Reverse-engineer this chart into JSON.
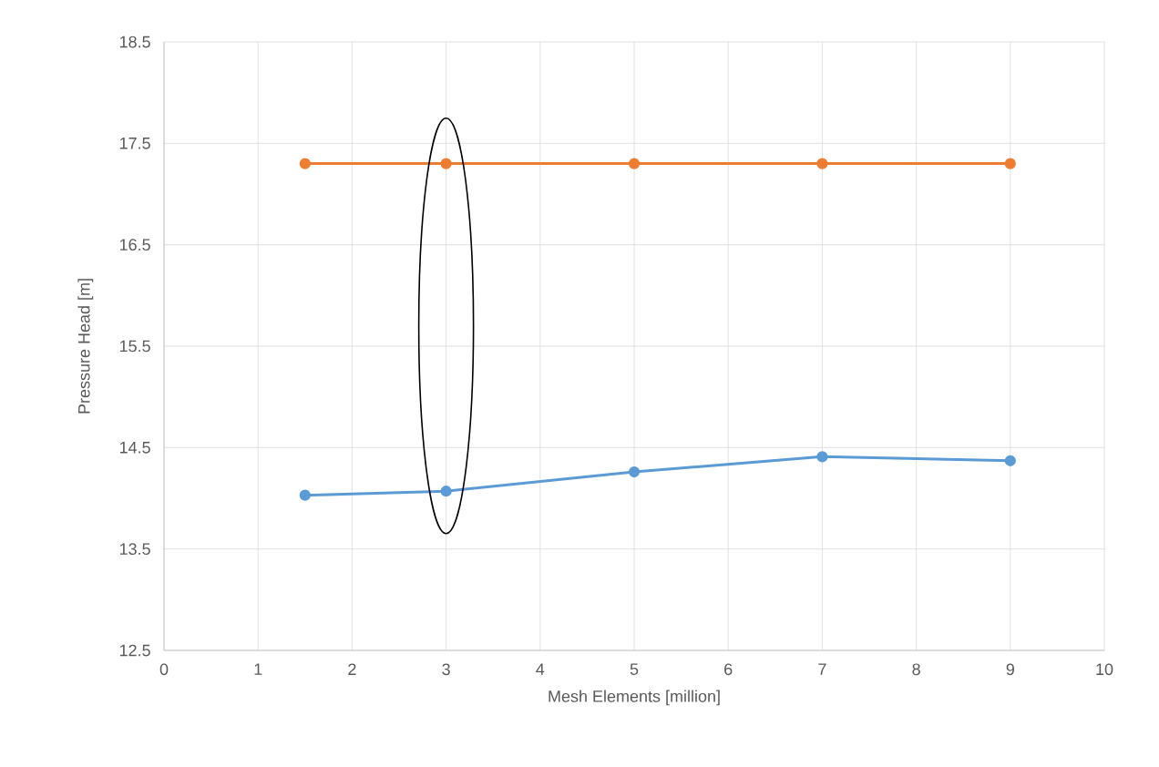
{
  "chart_data": {
    "type": "line",
    "xlabel": "Mesh Elements [million]",
    "ylabel": "Pressure Head [m]",
    "x": [
      1.5,
      3,
      5,
      7,
      9
    ],
    "series": [
      {
        "color": "#ed7d31",
        "values": [
          17.3,
          17.3,
          17.3,
          17.3,
          17.3
        ]
      },
      {
        "color": "#5b9bd5",
        "values": [
          14.03,
          14.07,
          14.26,
          14.41,
          14.37
        ]
      }
    ],
    "xlim": [
      0,
      10
    ],
    "xticks": [
      0,
      1,
      2,
      3,
      4,
      5,
      6,
      7,
      8,
      9,
      10
    ],
    "ylim": [
      12.5,
      18.5
    ],
    "yticks": [
      12.5,
      13.5,
      14.5,
      15.5,
      16.5,
      17.5,
      18.5
    ],
    "grid": true,
    "marker": "circle",
    "line_style": "solid"
  }
}
